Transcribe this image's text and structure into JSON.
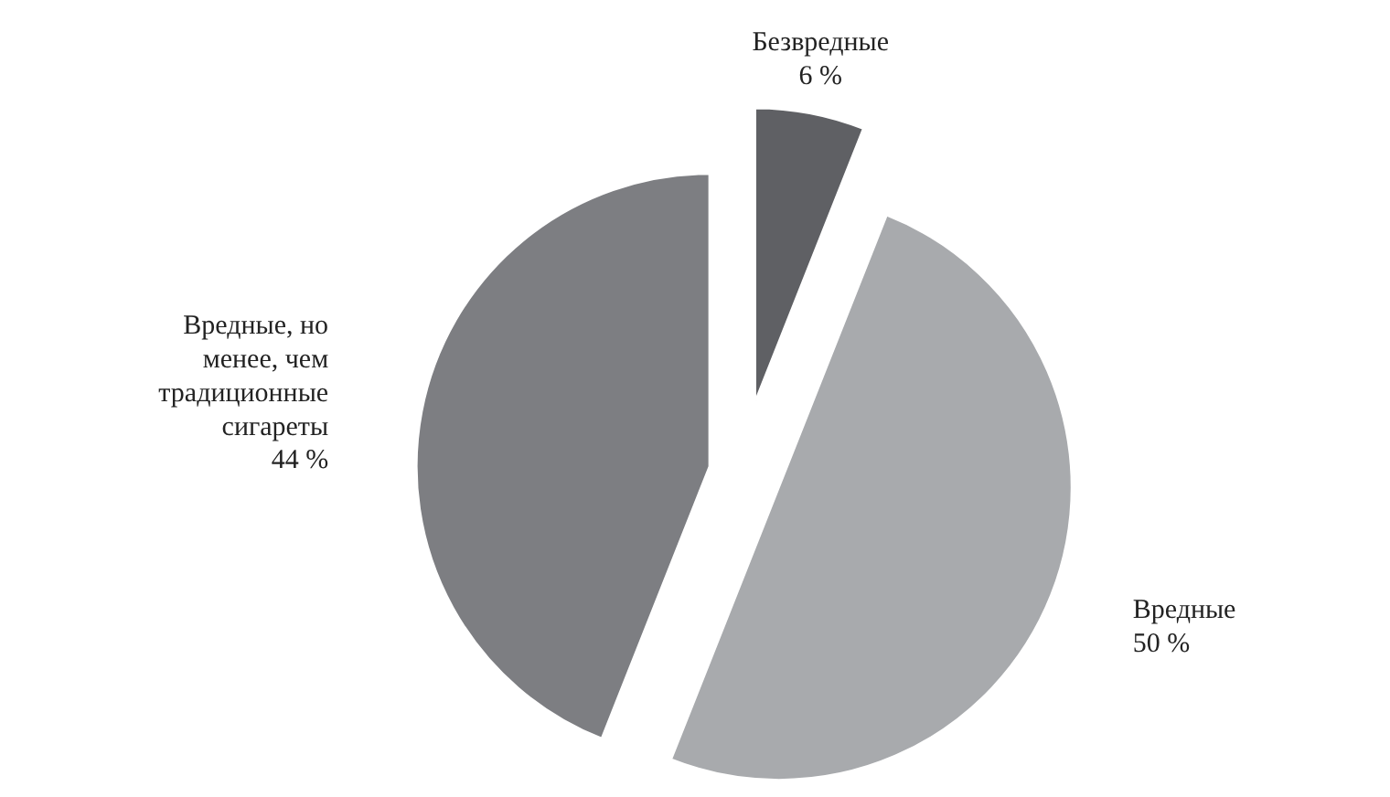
{
  "chart_data": {
    "type": "pie",
    "categories": [
      "Безвредные",
      "Вредные",
      "Вредные, но менее, чем традиционные сигареты"
    ],
    "values": [
      6,
      50,
      44
    ],
    "colors": [
      "#5f6064",
      "#a8aaad",
      "#7d7e82"
    ],
    "value_labels": [
      "6 %",
      "50 %",
      "44 %"
    ]
  }
}
